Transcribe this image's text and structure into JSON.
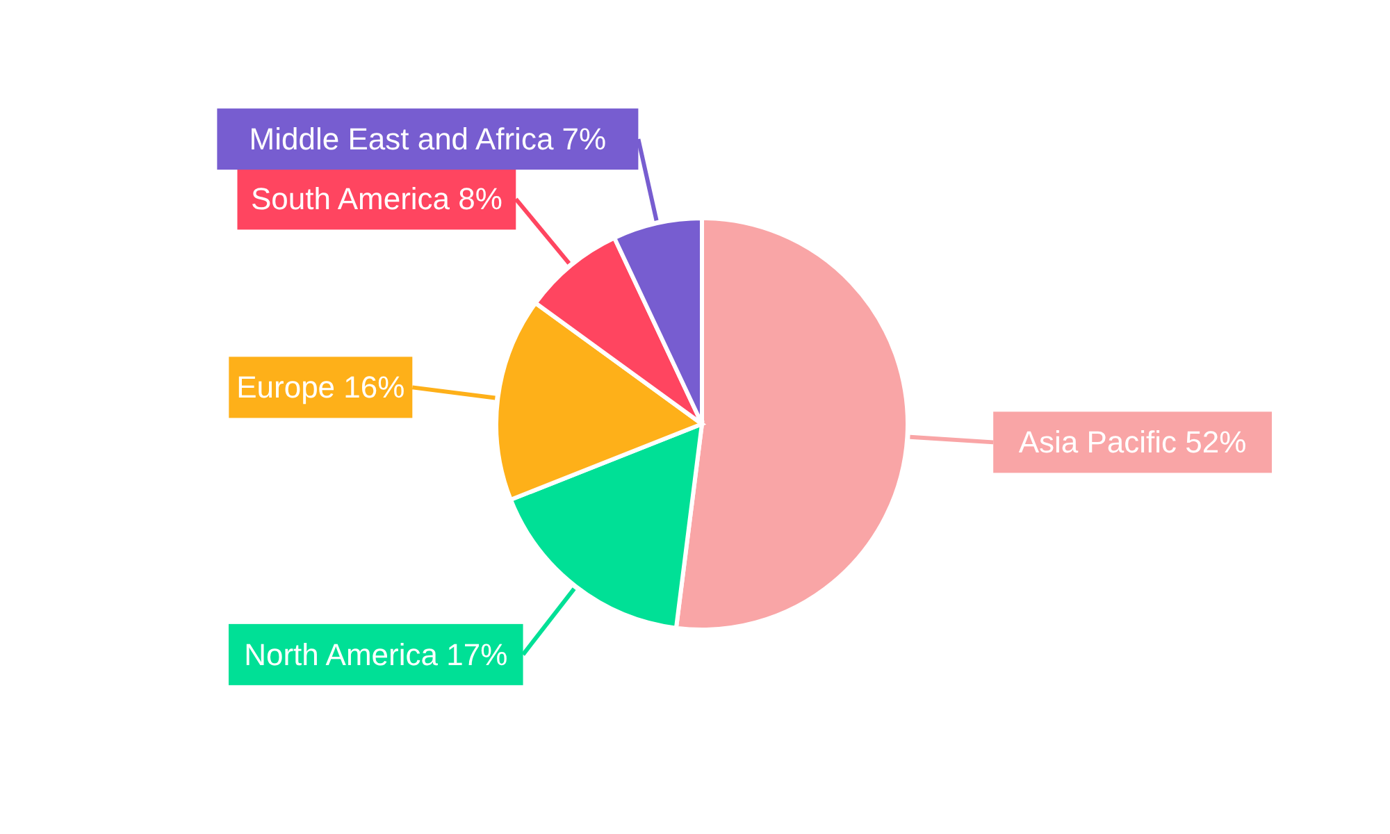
{
  "chart_data": {
    "type": "pie",
    "categories": [
      "Asia Pacific",
      "North America",
      "Europe",
      "South America",
      "Middle East and Africa"
    ],
    "values": [
      52,
      17,
      16,
      8,
      7
    ],
    "value_labels": [
      "52%",
      "17%",
      "16%",
      "8%",
      "7%"
    ],
    "colors": [
      "#f9a5a6",
      "#00e096",
      "#feb019",
      "#ff4560",
      "#775dd0"
    ]
  }
}
